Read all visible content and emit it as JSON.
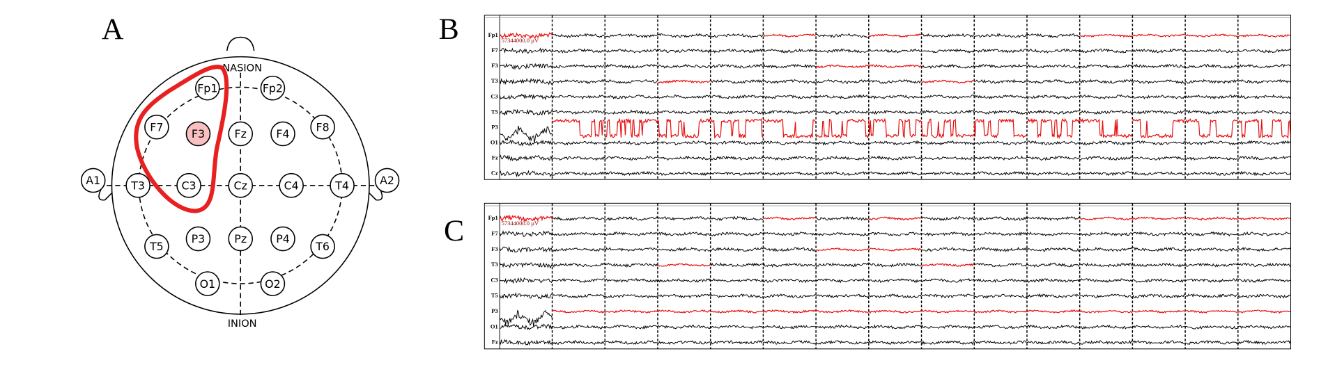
{
  "panel_a": {
    "label": "A",
    "nasion": "NASION",
    "inion": "INION",
    "highlighted": "F3",
    "electrodes": [
      "Fp1",
      "Fp2",
      "F7",
      "F3",
      "Fz",
      "F4",
      "F8",
      "A1",
      "T3",
      "C3",
      "Cz",
      "C4",
      "T4",
      "A2",
      "T5",
      "P3",
      "Pz",
      "P4",
      "T6",
      "O1",
      "O2"
    ]
  },
  "panel_b": {
    "label": "B",
    "scale_label": "57344000.0 µV",
    "channels": [
      {
        "label": "Fp1",
        "red_segments": [
          0,
          5,
          7,
          11,
          12,
          13,
          14
        ]
      },
      {
        "label": "F7",
        "red_segments": []
      },
      {
        "label": "F3",
        "red_segments": [
          6,
          7
        ]
      },
      {
        "label": "T3",
        "red_segments": [
          3,
          8
        ]
      },
      {
        "label": "C3",
        "red_segments": []
      },
      {
        "label": "T5",
        "red_segments": []
      },
      {
        "label": "P3",
        "red_segments": [
          1,
          2,
          3,
          4,
          5,
          6,
          7,
          8,
          9,
          10,
          11,
          12,
          13,
          14
        ]
      },
      {
        "label": "O1",
        "red_segments": []
      },
      {
        "label": "Fz",
        "red_segments": []
      },
      {
        "label": "Cz",
        "red_segments": []
      }
    ]
  },
  "panel_c": {
    "label": "C",
    "scale_label": "57344000.0 µV",
    "channels": [
      {
        "label": "Fp1",
        "red_segments": [
          0,
          5,
          7,
          11,
          12,
          13,
          14
        ]
      },
      {
        "label": "F7",
        "red_segments": []
      },
      {
        "label": "F3",
        "red_segments": [
          6,
          7
        ]
      },
      {
        "label": "T3",
        "red_segments": [
          3,
          8
        ]
      },
      {
        "label": "C3",
        "red_segments": []
      },
      {
        "label": "T5",
        "red_segments": []
      },
      {
        "label": "P3",
        "red_segments": [
          1,
          2,
          3,
          4,
          5,
          6,
          7,
          8,
          9,
          10,
          11,
          12,
          13,
          14
        ]
      },
      {
        "label": "O1",
        "red_segments": []
      },
      {
        "label": "Fz",
        "red_segments": []
      }
    ]
  }
}
